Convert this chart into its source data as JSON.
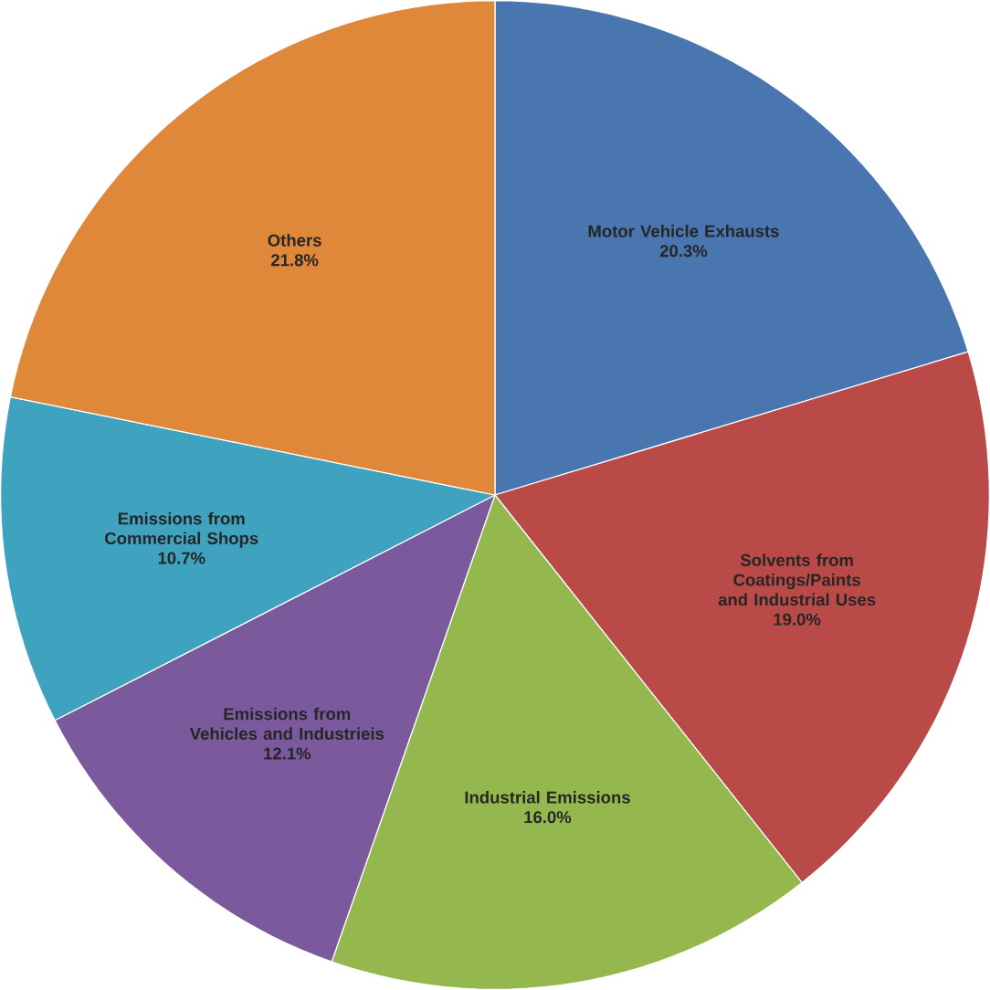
{
  "chart_data": {
    "type": "pie",
    "categories": [
      "Motor Vehicle Exhausts",
      "Solvents from Coatings/Paints and Industrial Uses",
      "Industrial Emissions",
      "Emissions from Vehicles and Industrieis",
      "Emissions from Commercial Shops",
      "Others"
    ],
    "values": [
      20.3,
      19.0,
      16.0,
      12.1,
      10.7,
      21.8
    ],
    "value_labels": [
      "20.3%",
      "19.0%",
      "16.0%",
      "12.1%",
      "10.7%",
      "21.8%"
    ],
    "colors": [
      "#4a76b0",
      "#b94a48",
      "#95b84e",
      "#7a5a9c",
      "#3fa3c0",
      "#e0883a"
    ]
  }
}
